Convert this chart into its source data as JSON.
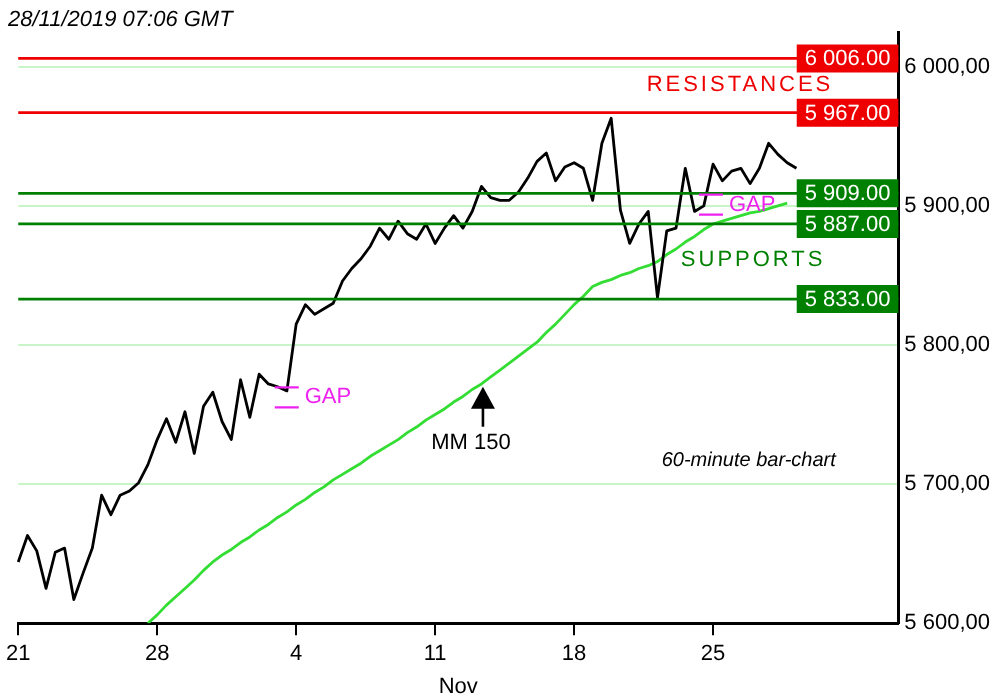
{
  "chart_data": {
    "type": "line",
    "xlabel": "Nov",
    "categories": [
      "21",
      null,
      null,
      null,
      null,
      null,
      null,
      null,
      null,
      null,
      null,
      null,
      null,
      null,
      null,
      "28",
      null,
      null,
      null,
      null,
      null,
      null,
      null,
      null,
      null,
      null,
      null,
      null,
      null,
      null,
      "4",
      null,
      null,
      null,
      null,
      null,
      null,
      null,
      null,
      null,
      null,
      null,
      null,
      null,
      null,
      "11",
      null,
      null,
      null,
      null,
      null,
      null,
      null,
      null,
      null,
      null,
      null,
      null,
      null,
      null,
      "18",
      null,
      null,
      null,
      null,
      null,
      null,
      null,
      null,
      null,
      null,
      null,
      null,
      null,
      null,
      "25",
      null,
      null,
      null,
      null,
      null,
      null,
      null,
      null,
      null,
      null,
      null,
      null,
      null,
      null,
      null,
      null,
      null,
      null,
      null,
      null
    ],
    "ylim": [
      5600,
      6025
    ],
    "yticks": [
      {
        "value": 5600,
        "label": "5 600,00"
      },
      {
        "value": 5700,
        "label": "5 700,00"
      },
      {
        "value": 5800,
        "label": "5 800,00"
      },
      {
        "value": 5900,
        "label": "5 900,00"
      },
      {
        "value": 6000,
        "label": "6 000,00"
      }
    ],
    "grid": "y",
    "legend": false,
    "series": [
      {
        "color": "#000000",
        "values": [
          5644,
          5663,
          5652,
          5625,
          5651,
          5654,
          5617,
          5636,
          5654,
          5692,
          5678,
          5692,
          5695,
          5701,
          5714,
          5732,
          5747,
          5730,
          5752,
          5722,
          5756,
          5766,
          5745,
          5732,
          5775,
          5748,
          5779,
          5772,
          5770,
          5767,
          5815,
          5829,
          5822,
          5826,
          5830,
          5846,
          5855,
          5862,
          5871,
          5884,
          5876,
          5889,
          5880,
          5876,
          5887,
          5873,
          5884,
          5893,
          5884,
          5896,
          5914,
          5906,
          5904,
          5904,
          5910,
          5920,
          5932,
          5938,
          5918,
          5928,
          5931,
          5927,
          5904,
          5945,
          5963,
          5897,
          5873,
          5887,
          5896,
          5834,
          5882,
          5884,
          5927,
          5896,
          5900,
          5930,
          5918,
          5925,
          5927,
          5916,
          5927,
          5945,
          5937,
          5931,
          5927,
          null,
          null,
          null,
          null,
          null,
          null,
          null,
          null,
          null,
          null,
          null
        ]
      },
      {
        "color": "#33dd33",
        "values": [
          null,
          null,
          null,
          null,
          null,
          null,
          null,
          null,
          null,
          null,
          null,
          null,
          null,
          null,
          5600,
          5606,
          5613,
          5619,
          5625,
          5631,
          5638,
          5644,
          5649,
          5653,
          5658,
          5662,
          5667,
          5671,
          5676,
          5680,
          5685,
          5689,
          5694,
          5698,
          5703,
          5707,
          5711,
          5715,
          5720,
          5724,
          5728,
          5732,
          5737,
          5741,
          5746,
          5750,
          5754,
          5759,
          5763,
          5768,
          5772,
          5777,
          5782,
          5787,
          5792,
          5797,
          5802,
          5809,
          5815,
          5822,
          5829,
          5835,
          5842,
          5845,
          5847,
          5850,
          5852,
          5855,
          5857,
          5860,
          5865,
          5869,
          5874,
          5878,
          5883,
          5887,
          5889,
          5891,
          5893,
          5895,
          5896,
          5898,
          5900,
          5902,
          null,
          null,
          null,
          null,
          null,
          null,
          null,
          null,
          null,
          null,
          null,
          null
        ]
      }
    ],
    "ref_lines": [
      {
        "axis": "y",
        "value": 6006,
        "label": "6 006.00",
        "color": "#ee0000"
      },
      {
        "axis": "y",
        "value": 5967,
        "label": "5 967.00",
        "color": "#ee0000"
      },
      {
        "axis": "y",
        "value": 5909,
        "label": "5 909.00",
        "color": "#008000"
      },
      {
        "axis": "y",
        "value": 5887,
        "label": "5 887.00",
        "color": "#008000"
      },
      {
        "axis": "y",
        "value": 5833,
        "label": "5 833.00",
        "color": "#008000"
      }
    ],
    "annotations": [
      "28/11/2019 07:06 GMT",
      "RESISTANCES",
      "SUPPORTS",
      "GAP",
      "GAP",
      {
        "text": "MM 150",
        "y": 5770
      },
      "60-minute bar-chart"
    ]
  }
}
